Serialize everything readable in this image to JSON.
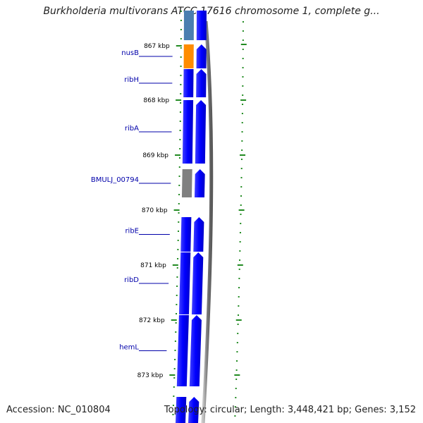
{
  "title": "Burkholderia multivorans ATCC 17616 chromosome 1, complete g...",
  "footer": {
    "accession": "Accession: NC_010804",
    "summary": "Topology: circular; Length: 3,448,421 bp; Genes: 3,152"
  },
  "scale_labels": [
    "867 kbp",
    "868 kbp",
    "869 kbp",
    "870 kbp",
    "871 kbp",
    "872 kbp",
    "873 kbp"
  ],
  "genes": [
    {
      "name": "",
      "color": "#4a7fb0"
    },
    {
      "name": "nusB",
      "color": "#ff8c00"
    },
    {
      "name": "ribH",
      "color": "#0000ff"
    },
    {
      "name": "ribA",
      "color": "#0000ff"
    },
    {
      "name": "BMULJ_00794",
      "color": "#808080"
    },
    {
      "name": "ribE",
      "color": "#0000ff"
    },
    {
      "name": "ribD",
      "color": "#0000ff"
    },
    {
      "name": "hemL",
      "color": "#0000ff"
    },
    {
      "name": "",
      "color": "#0000ff"
    }
  ],
  "colors": {
    "label": "#0000aa",
    "tick": "#228b22",
    "backbone": "#808080",
    "cds_arrow": "#0000ff"
  }
}
